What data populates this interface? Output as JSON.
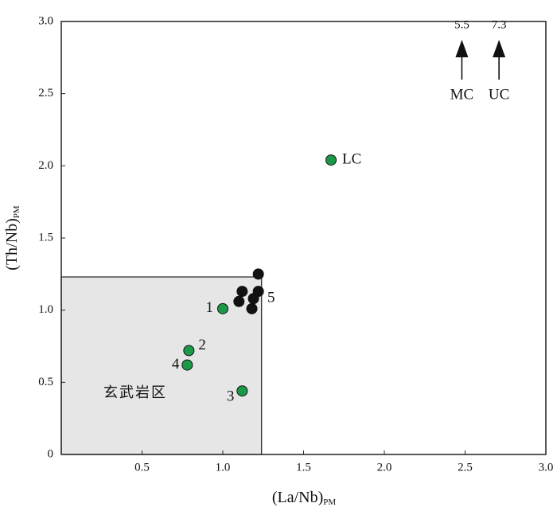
{
  "chart_data": {
    "type": "scatter",
    "xlabel": {
      "text": "(La/Nb)",
      "sub": "PM"
    },
    "ylabel": {
      "text": "(Th/Nb)",
      "sub": "PM"
    },
    "xlim": [
      0,
      3.0
    ],
    "ylim": [
      0,
      3.0
    ],
    "xticks": [
      0.5,
      {
        "value": 1,
        "label": "1.0"
      },
      1.5,
      {
        "value": 2,
        "label": "2.0"
      },
      2.5,
      {
        "value": 3,
        "label": "3.0"
      }
    ],
    "yticks": [
      0,
      0.5,
      {
        "value": 1,
        "label": "1.0"
      },
      1.5,
      {
        "value": 2,
        "label": "2.0"
      },
      2.5,
      {
        "value": 3,
        "label": "3.0"
      }
    ],
    "field": {
      "label": "玄武岩区",
      "x": [
        0,
        1.24
      ],
      "y": [
        0,
        1.23
      ],
      "color": "#e6e6e6"
    },
    "series": [
      {
        "color": "#111111",
        "group_label": "5",
        "x": [
          1.22,
          1.12,
          1.1,
          1.22,
          1.19,
          1.18
        ],
        "values": [
          1.25,
          1.13,
          1.06,
          1.13,
          1.08,
          1.01
        ]
      },
      {
        "color": "#1a9a48",
        "point_labels": [
          "1",
          "2",
          "4",
          "3",
          "LC"
        ],
        "x": [
          1.0,
          0.79,
          0.78,
          1.12,
          1.67
        ],
        "values": [
          1.01,
          0.72,
          0.62,
          0.44,
          2.04
        ]
      }
    ],
    "arrows": [
      {
        "name": "MC",
        "x": 2.48,
        "value": 5.5
      },
      {
        "name": "UC",
        "x": 2.71,
        "value": 7.3
      }
    ]
  }
}
